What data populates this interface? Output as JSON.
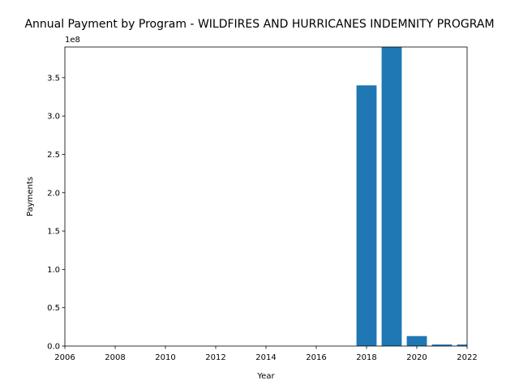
{
  "chart_data": {
    "type": "bar",
    "title": "Annual Payment by Program - WILDFIRES AND HURRICANES INDEMNITY PROGRAM",
    "xlabel": "Year",
    "ylabel": "Payments",
    "y_offset_label": "1e8",
    "x": [
      2018,
      2019,
      2020,
      2021,
      2022
    ],
    "values": [
      340000000,
      390000000,
      13000000,
      2000000,
      2000000
    ],
    "xlim": [
      2006,
      2022
    ],
    "ylim": [
      0,
      390000000
    ],
    "x_ticks": [
      2006,
      2008,
      2010,
      2012,
      2014,
      2016,
      2018,
      2020,
      2022
    ],
    "x_tick_labels": [
      "2006",
      "2008",
      "2010",
      "2012",
      "2014",
      "2016",
      "2018",
      "2020",
      "2022"
    ],
    "y_ticks": [
      0,
      50000000,
      100000000,
      150000000,
      200000000,
      250000000,
      300000000,
      350000000
    ],
    "y_tick_labels": [
      "0.0",
      "0.5",
      "1.0",
      "1.5",
      "2.0",
      "2.5",
      "3.0",
      "3.5"
    ],
    "bar_color": "#1f77b4",
    "grid": false,
    "legend": "none"
  }
}
